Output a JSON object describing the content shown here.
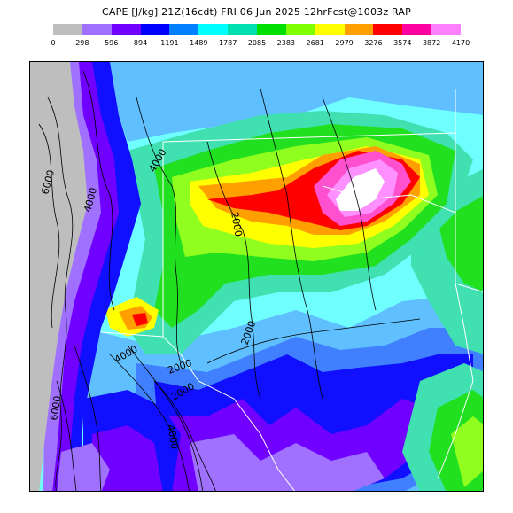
{
  "title": "CAPE [J/kg] 21Z(16cdt) FRI 06 Jun 2025  12hrFcst@1003z RAP",
  "colorbar": {
    "colors": [
      "#bebebe",
      "#a070ff",
      "#7000ff",
      "#0000ff",
      "#0080ff",
      "#00ffff",
      "#00e0b0",
      "#00e000",
      "#80ff00",
      "#ffff00",
      "#ffa000",
      "#ff0000",
      "#ff00a0",
      "#ff80ff"
    ],
    "labels": [
      "0",
      "298",
      "596",
      "894",
      "1191",
      "1489",
      "1787",
      "2085",
      "2383",
      "2681",
      "2979",
      "3276",
      "3574",
      "3872",
      "4170"
    ]
  },
  "map": {
    "contour_labels": [
      "6000",
      "4000",
      "4000",
      "2000",
      "2000",
      "2000",
      "2000",
      "4000",
      "4000",
      "6000"
    ],
    "field_colors": {
      "grey": "#bebebe",
      "lavender": "#a070ff",
      "violet": "#7000ff",
      "blue": "#1010ff",
      "lightblue": "#4080ff",
      "skyblue": "#60c0ff",
      "cyan": "#70ffff",
      "teal": "#40e0b0",
      "green": "#20e020",
      "lime": "#90ff20",
      "yellow": "#ffff00",
      "orange": "#ffa000",
      "red": "#ff0000",
      "magenta": "#ff50d0",
      "pink": "#ff90ff",
      "white": "#ffffff"
    }
  }
}
